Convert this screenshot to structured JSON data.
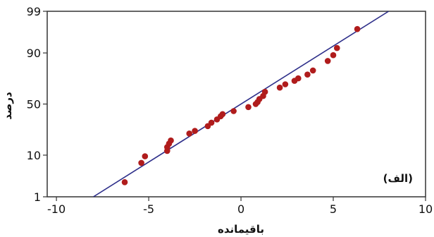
{
  "chart_data": {
    "type": "scatter",
    "title": "",
    "panel_label": "(الف)",
    "xlabel": "باقیمانده",
    "ylabel": "درصد",
    "xlim": [
      -10.5,
      10
    ],
    "ylim": [
      1,
      99
    ],
    "y_scale": "normal-probability",
    "xticks": [
      -10,
      -5,
      0,
      5,
      10
    ],
    "yticks": [
      1,
      10,
      50,
      90,
      99
    ],
    "grid": false,
    "colors": {
      "points": "#b01c1c",
      "fit_line": "#2e2f8a",
      "axes": "#333333"
    },
    "fit_line": {
      "x": [
        -8,
        8
      ],
      "y": [
        1,
        99
      ]
    },
    "points": [
      {
        "x": -6.3,
        "y": 2.5
      },
      {
        "x": -5.4,
        "y": 7
      },
      {
        "x": -5.2,
        "y": 9.5
      },
      {
        "x": -4.0,
        "y": 12
      },
      {
        "x": -4.0,
        "y": 14
      },
      {
        "x": -3.9,
        "y": 16
      },
      {
        "x": -3.8,
        "y": 18
      },
      {
        "x": -2.8,
        "y": 23
      },
      {
        "x": -2.5,
        "y": 25
      },
      {
        "x": -1.8,
        "y": 29
      },
      {
        "x": -1.6,
        "y": 32
      },
      {
        "x": -1.3,
        "y": 35
      },
      {
        "x": -1.1,
        "y": 38
      },
      {
        "x": -1.0,
        "y": 40
      },
      {
        "x": -0.4,
        "y": 43
      },
      {
        "x": 0.4,
        "y": 47
      },
      {
        "x": 0.8,
        "y": 50
      },
      {
        "x": 0.9,
        "y": 52
      },
      {
        "x": 1.0,
        "y": 55
      },
      {
        "x": 1.2,
        "y": 58
      },
      {
        "x": 1.3,
        "y": 62
      },
      {
        "x": 2.1,
        "y": 66
      },
      {
        "x": 2.4,
        "y": 69
      },
      {
        "x": 2.9,
        "y": 72
      },
      {
        "x": 3.1,
        "y": 74
      },
      {
        "x": 3.6,
        "y": 77
      },
      {
        "x": 3.9,
        "y": 80
      },
      {
        "x": 4.7,
        "y": 86
      },
      {
        "x": 5.0,
        "y": 89
      },
      {
        "x": 5.2,
        "y": 92
      },
      {
        "x": 6.3,
        "y": 97
      }
    ]
  }
}
